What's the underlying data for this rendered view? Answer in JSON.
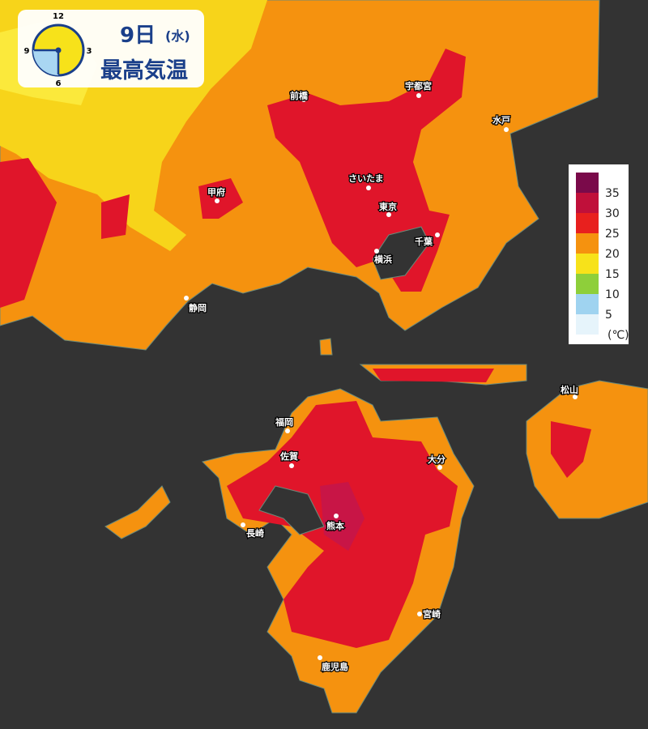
{
  "header": {
    "date": "9日",
    "weekday": "(水)",
    "title": "最高気温"
  },
  "clock": {
    "labels": [
      "12",
      "3",
      "6",
      "9"
    ]
  },
  "legend": {
    "labels": [
      35,
      30,
      25,
      20,
      15,
      10,
      5
    ],
    "unit": "(℃)"
  },
  "cities": [
    "前橋",
    "宇都宮",
    "水戸",
    "さいたま",
    "甲府",
    "東京",
    "千葉",
    "横浜",
    "静岡",
    "福岡",
    "佐賀",
    "大分",
    "松山",
    "熊本",
    "長崎",
    "宮崎",
    "鹿児島"
  ]
}
